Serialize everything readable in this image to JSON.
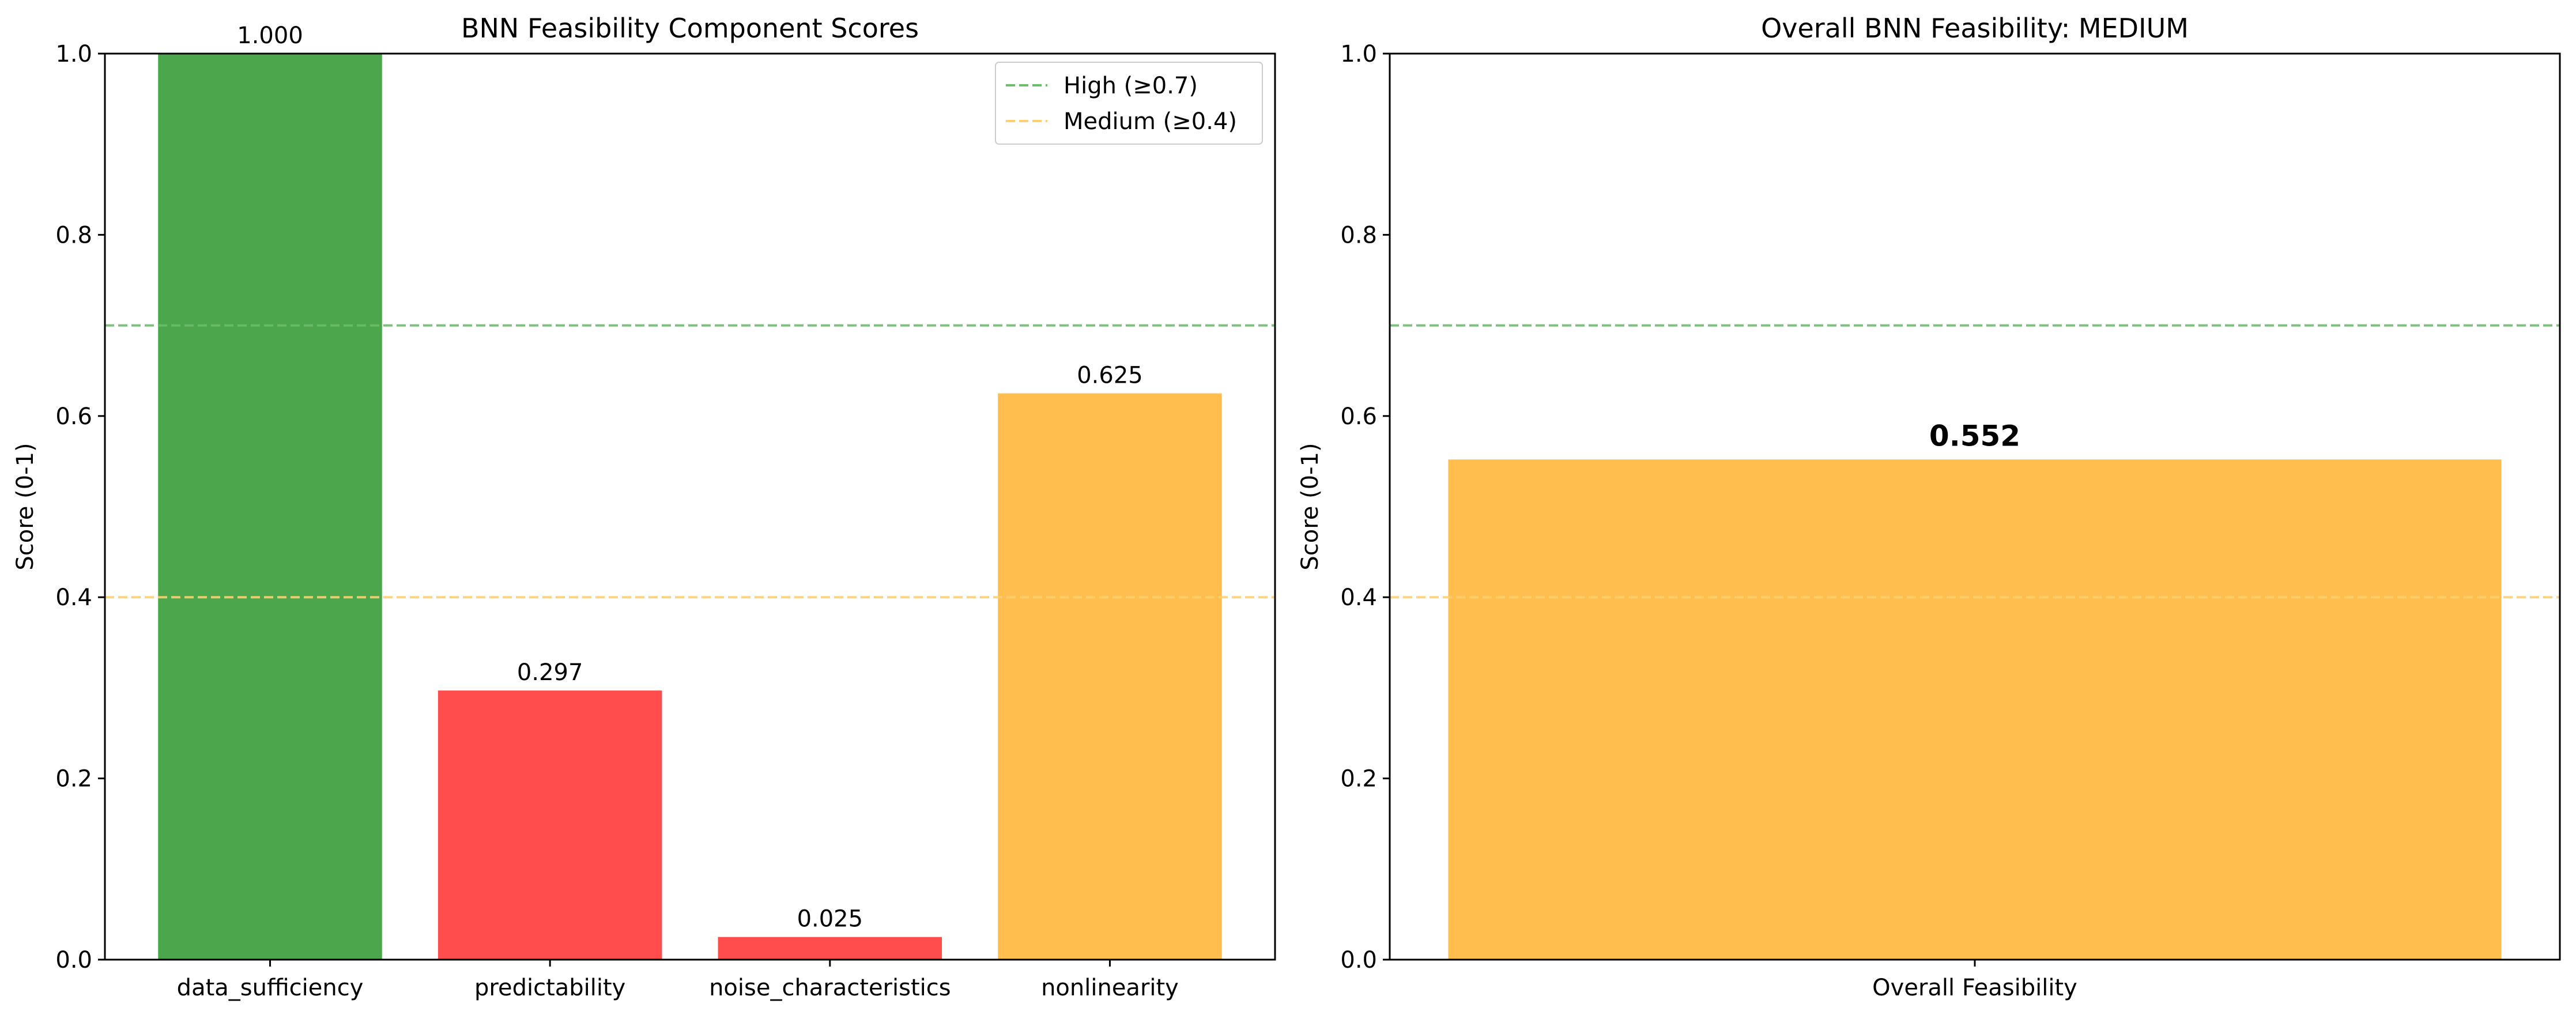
{
  "chart_data": [
    {
      "type": "bar",
      "title": "BNN Feasibility Component Scores",
      "xlabel": "",
      "ylabel": "Score (0-1)",
      "ylim": [
        0,
        1
      ],
      "yticks": [
        "0.0",
        "0.2",
        "0.4",
        "0.6",
        "0.8",
        "1.0"
      ],
      "categories": [
        "data_sufficiency",
        "predictability",
        "noise_characteristics",
        "nonlinearity"
      ],
      "values": [
        1.0,
        0.297,
        0.025,
        0.625
      ],
      "value_labels": [
        "1.000",
        "0.297",
        "0.025",
        "0.625"
      ],
      "bar_colors": [
        "#4ca64c",
        "#ff4d4d",
        "#ff4d4d",
        "#ffbe4d"
      ],
      "reference_lines": [
        {
          "value": 0.7,
          "color": "#6cbd6c",
          "label": "High (≥0.7)"
        },
        {
          "value": 0.4,
          "color": "#ffcf70",
          "label": "Medium (≥0.4)"
        }
      ],
      "legend_position": "top-right",
      "grid": false
    },
    {
      "type": "bar",
      "title": "Overall BNN Feasibility: MEDIUM",
      "xlabel": "",
      "ylabel": "Score (0-1)",
      "ylim": [
        0,
        1
      ],
      "yticks": [
        "0.0",
        "0.2",
        "0.4",
        "0.6",
        "0.8",
        "1.0"
      ],
      "categories": [
        "Overall Feasibility"
      ],
      "values": [
        0.552
      ],
      "value_labels": [
        "0.552"
      ],
      "bar_colors": [
        "#ffbe4d"
      ],
      "reference_lines": [
        {
          "value": 0.7,
          "color": "#6cbd6c"
        },
        {
          "value": 0.4,
          "color": "#ffcf70"
        }
      ],
      "grid": false
    }
  ]
}
